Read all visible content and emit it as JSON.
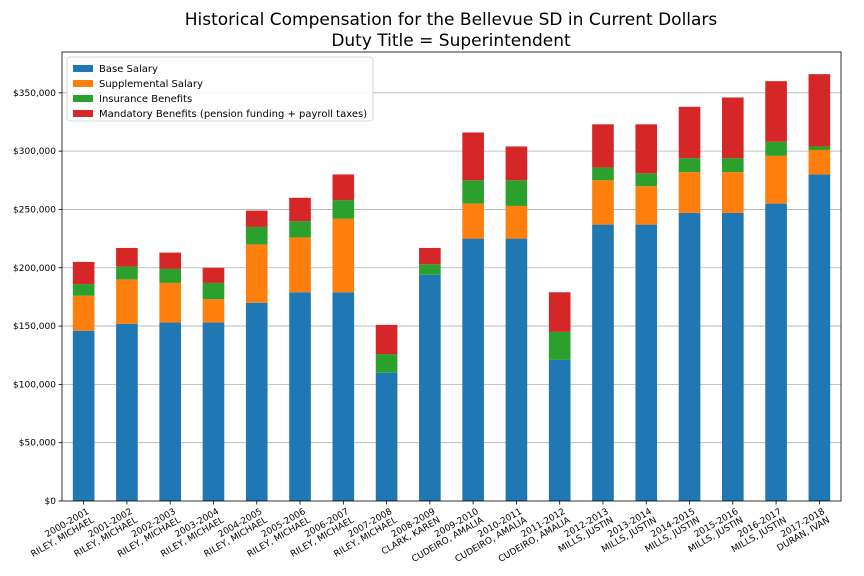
{
  "chart_data": {
    "type": "bar",
    "stacked": true,
    "title": [
      "Historical Compensation for the Bellevue SD in Current Dollars",
      "Duty Title = Superintendent"
    ],
    "xlabel": "",
    "ylabel": "",
    "ylim": [
      0,
      385000
    ],
    "yticks": [
      0,
      50000,
      100000,
      150000,
      200000,
      250000,
      300000,
      350000
    ],
    "ytick_labels": [
      "$0",
      "$50,000",
      "$100,000",
      "$150,000",
      "$200,000",
      "$250,000",
      "$300,000",
      "$350,000"
    ],
    "grid": "horizontal",
    "legend_position": "top-left",
    "categories": [
      [
        "2000-2001",
        "RILEY, MICHAEL"
      ],
      [
        "2001-2002",
        "RILEY, MICHAEL"
      ],
      [
        "2002-2003",
        "RILEY, MICHAEL"
      ],
      [
        "2003-2004",
        "RILEY, MICHAEL"
      ],
      [
        "2004-2005",
        "RILEY, MICHAEL"
      ],
      [
        "2005-2006",
        "RILEY, MICHAEL"
      ],
      [
        "2006-2007",
        "RILEY, MICHAEL"
      ],
      [
        "2007-2008",
        "RILEY, MICHAEL"
      ],
      [
        "2008-2009",
        "CLARK, KAREN"
      ],
      [
        "2009-2010",
        "CUDEIRO, AMALIA"
      ],
      [
        "2010-2011",
        "CUDEIRO, AMALIA"
      ],
      [
        "2011-2012",
        "CUDEIRO, AMALIA"
      ],
      [
        "2012-2013",
        "MILLS, JUSTIN"
      ],
      [
        "2013-2014",
        "MILLS, JUSTIN"
      ],
      [
        "2014-2015",
        "MILLS, JUSTIN"
      ],
      [
        "2015-2016",
        "MILLS, JUSTIN"
      ],
      [
        "2016-2017",
        "MILLS, JUSTIN"
      ],
      [
        "2017-2018",
        "DURAN, IVAN"
      ]
    ],
    "series": [
      {
        "name": "Base Salary",
        "color": "#1f77b4",
        "values": [
          146000,
          152000,
          153000,
          153000,
          170000,
          179000,
          179000,
          110000,
          194000,
          225000,
          225000,
          121000,
          237000,
          237000,
          247000,
          247000,
          255000,
          280000
        ]
      },
      {
        "name": "Supplemental Salary",
        "color": "#ff7f0e",
        "values": [
          30000,
          38000,
          34000,
          20000,
          50000,
          47000,
          63000,
          0,
          0,
          30000,
          28000,
          0,
          38000,
          33000,
          35000,
          35000,
          41000,
          21000
        ]
      },
      {
        "name": "Insurance Benefits",
        "color": "#2ca02c",
        "values": [
          10000,
          11000,
          12000,
          14000,
          15000,
          14000,
          16000,
          16000,
          9000,
          20000,
          22000,
          24000,
          11000,
          11000,
          12000,
          12000,
          12000,
          3000
        ]
      },
      {
        "name": "Mandatory Benefits (pension funding + payroll taxes)",
        "color": "#d62728",
        "values": [
          19000,
          16000,
          14000,
          13000,
          14000,
          20000,
          22000,
          25000,
          14000,
          41000,
          29000,
          34000,
          37000,
          42000,
          44000,
          52000,
          52000,
          62000
        ]
      }
    ]
  }
}
